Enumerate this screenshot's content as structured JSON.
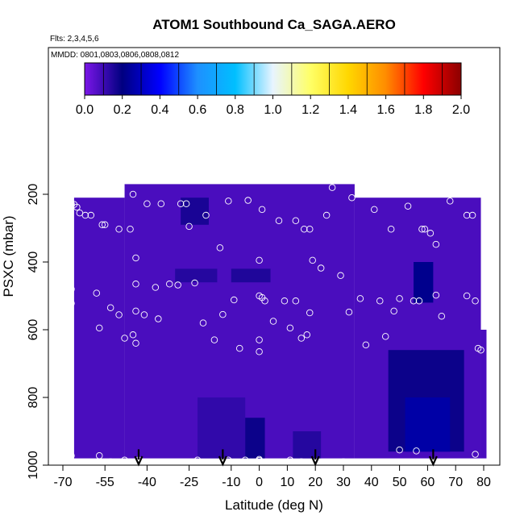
{
  "chart_data": {
    "type": "heatmap",
    "title": "ATOM1 Southbound Ca_SAGA.AERO",
    "notes": [
      "Flts: 2,3,4,5,6",
      "MMDD: 0801,0803,0806,0808,0812"
    ],
    "xlabel": "Latitude (deg N)",
    "ylabel": "PSXC (mbar)",
    "xlim": [
      -70,
      80
    ],
    "ylim": [
      1000,
      100
    ],
    "x_ticks": [
      -70,
      -55,
      -40,
      -25,
      -10,
      0,
      10,
      20,
      30,
      40,
      50,
      60,
      70,
      80
    ],
    "x_tick_labels": [
      "-70",
      "-55",
      "-40",
      "-25",
      "-10",
      "0",
      "10",
      "20",
      "30",
      "40",
      "50",
      "60",
      "70",
      "80"
    ],
    "y_ticks": [
      200,
      400,
      600,
      800,
      1000
    ],
    "y_tick_labels": [
      "200",
      "400",
      "600",
      "800",
      "1000"
    ],
    "colorbar": {
      "range": [
        0,
        2.0
      ],
      "ticks": [
        0.0,
        0.2,
        0.4,
        0.6,
        0.8,
        1.0,
        1.2,
        1.4,
        1.6,
        1.8,
        2.0
      ],
      "tick_labels": [
        "0.0",
        "0.2",
        "0.4",
        "0.6",
        "0.8",
        "1.0",
        "1.2",
        "1.4",
        "1.6",
        "1.8",
        "2.0"
      ],
      "colors": [
        "#7b16e8",
        "#000080",
        "#0000ff",
        "#1e90ff",
        "#00bfff",
        "#e8f4ff",
        "#ffff66",
        "#ffd700",
        "#ff8c00",
        "#ff0000",
        "#8b0000"
      ]
    },
    "field_default_value": 0.08,
    "field_regions": [
      {
        "x": [
          -66,
          -48
        ],
        "y": [
          210,
          980
        ],
        "value": 0.08
      },
      {
        "x": [
          -48,
          34
        ],
        "y": [
          170,
          980
        ],
        "value": 0.08
      },
      {
        "x": [
          34,
          79
        ],
        "y": [
          210,
          980
        ],
        "value": 0.08
      },
      {
        "x": [
          79,
          81
        ],
        "y": [
          600,
          980
        ],
        "value": 0.08
      },
      {
        "x": [
          -28,
          -18
        ],
        "y": [
          210,
          290
        ],
        "value": 0.16
      },
      {
        "x": [
          -10,
          4
        ],
        "y": [
          420,
          460
        ],
        "value": 0.15
      },
      {
        "x": [
          -30,
          -15
        ],
        "y": [
          420,
          460
        ],
        "value": 0.14
      },
      {
        "x": [
          -22,
          -5
        ],
        "y": [
          800,
          980
        ],
        "value": 0.12
      },
      {
        "x": [
          -5,
          2
        ],
        "y": [
          860,
          980
        ],
        "value": 0.18
      },
      {
        "x": [
          12,
          22
        ],
        "y": [
          900,
          980
        ],
        "value": 0.14
      },
      {
        "x": [
          55,
          62
        ],
        "y": [
          400,
          520
        ],
        "value": 0.22
      },
      {
        "x": [
          46,
          73
        ],
        "y": [
          660,
          960
        ],
        "value": 0.18
      },
      {
        "x": [
          52,
          68
        ],
        "y": [
          800,
          960
        ],
        "value": 0.26
      }
    ],
    "observation_points": [
      {
        "x": -67,
        "y": 228
      },
      {
        "x": -66,
        "y": 230
      },
      {
        "x": -65,
        "y": 238
      },
      {
        "x": -64,
        "y": 255
      },
      {
        "x": -62,
        "y": 262
      },
      {
        "x": -60,
        "y": 262
      },
      {
        "x": -56,
        "y": 290
      },
      {
        "x": -55,
        "y": 290
      },
      {
        "x": -50,
        "y": 303
      },
      {
        "x": -46,
        "y": 303
      },
      {
        "x": -45,
        "y": 200
      },
      {
        "x": -40,
        "y": 228
      },
      {
        "x": -35,
        "y": 228
      },
      {
        "x": -28,
        "y": 228
      },
      {
        "x": -26,
        "y": 228
      },
      {
        "x": -19,
        "y": 262
      },
      {
        "x": -11,
        "y": 220
      },
      {
        "x": -4,
        "y": 218
      },
      {
        "x": 1,
        "y": 245
      },
      {
        "x": 7,
        "y": 278
      },
      {
        "x": 13,
        "y": 278
      },
      {
        "x": 16,
        "y": 303
      },
      {
        "x": 18,
        "y": 303
      },
      {
        "x": 24,
        "y": 262
      },
      {
        "x": 26,
        "y": 180
      },
      {
        "x": 33,
        "y": 210
      },
      {
        "x": 41,
        "y": 245
      },
      {
        "x": 47,
        "y": 303
      },
      {
        "x": 53,
        "y": 235
      },
      {
        "x": 58,
        "y": 303
      },
      {
        "x": 59,
        "y": 303
      },
      {
        "x": 61,
        "y": 315
      },
      {
        "x": 63,
        "y": 348
      },
      {
        "x": 68,
        "y": 220
      },
      {
        "x": 74,
        "y": 262
      },
      {
        "x": 76,
        "y": 262
      },
      {
        "x": -44,
        "y": 388
      },
      {
        "x": -25,
        "y": 295
      },
      {
        "x": -14,
        "y": 358
      },
      {
        "x": 0,
        "y": 395
      },
      {
        "x": 19,
        "y": 395
      },
      {
        "x": 22,
        "y": 418
      },
      {
        "x": 29,
        "y": 440
      },
      {
        "x": -44,
        "y": 465
      },
      {
        "x": -37,
        "y": 475
      },
      {
        "x": -32,
        "y": 465
      },
      {
        "x": -29,
        "y": 468
      },
      {
        "x": -23,
        "y": 462
      },
      {
        "x": -67,
        "y": 480
      },
      {
        "x": -58,
        "y": 492
      },
      {
        "x": -67,
        "y": 522
      },
      {
        "x": -53,
        "y": 535
      },
      {
        "x": -50,
        "y": 556
      },
      {
        "x": -44,
        "y": 545
      },
      {
        "x": -41,
        "y": 556
      },
      {
        "x": -36,
        "y": 568
      },
      {
        "x": -45,
        "y": 615
      },
      {
        "x": -44,
        "y": 640
      },
      {
        "x": -48,
        "y": 625
      },
      {
        "x": -57,
        "y": 595
      },
      {
        "x": -20,
        "y": 580
      },
      {
        "x": -16,
        "y": 630
      },
      {
        "x": -13,
        "y": 555
      },
      {
        "x": -9,
        "y": 512
      },
      {
        "x": -7,
        "y": 655
      },
      {
        "x": 0,
        "y": 500
      },
      {
        "x": 1,
        "y": 505
      },
      {
        "x": 2,
        "y": 515
      },
      {
        "x": 0,
        "y": 630
      },
      {
        "x": 0,
        "y": 665
      },
      {
        "x": 5,
        "y": 575
      },
      {
        "x": 9,
        "y": 515
      },
      {
        "x": 11,
        "y": 595
      },
      {
        "x": 13,
        "y": 515
      },
      {
        "x": 15,
        "y": 625
      },
      {
        "x": 17,
        "y": 615
      },
      {
        "x": 18,
        "y": 550
      },
      {
        "x": 32,
        "y": 548
      },
      {
        "x": 36,
        "y": 508
      },
      {
        "x": 38,
        "y": 645
      },
      {
        "x": 43,
        "y": 515
      },
      {
        "x": 45,
        "y": 620
      },
      {
        "x": 48,
        "y": 545
      },
      {
        "x": 50,
        "y": 508
      },
      {
        "x": 55,
        "y": 515
      },
      {
        "x": 57,
        "y": 515
      },
      {
        "x": 63,
        "y": 498
      },
      {
        "x": 65,
        "y": 560
      },
      {
        "x": 74,
        "y": 500
      },
      {
        "x": 77,
        "y": 515
      },
      {
        "x": 78,
        "y": 655
      },
      {
        "x": 79,
        "y": 660
      },
      {
        "x": -67,
        "y": 972
      },
      {
        "x": -57,
        "y": 972
      },
      {
        "x": -53,
        "y": 990
      },
      {
        "x": -48,
        "y": 985
      },
      {
        "x": -43,
        "y": 985
      },
      {
        "x": -38,
        "y": 993
      },
      {
        "x": -32,
        "y": 993
      },
      {
        "x": -22,
        "y": 985
      },
      {
        "x": -11,
        "y": 985
      },
      {
        "x": -5,
        "y": 985
      },
      {
        "x": 0,
        "y": 983
      },
      {
        "x": 0,
        "y": 986
      },
      {
        "x": 11,
        "y": 985
      },
      {
        "x": 15,
        "y": 990
      },
      {
        "x": 18,
        "y": 992
      },
      {
        "x": 30,
        "y": 990
      },
      {
        "x": 43,
        "y": 1008
      },
      {
        "x": 50,
        "y": 955
      },
      {
        "x": 56,
        "y": 958
      },
      {
        "x": 77,
        "y": 968
      }
    ],
    "arrows": [
      {
        "x": -43,
        "y": 958
      },
      {
        "x": -13,
        "y": 958
      },
      {
        "x": 20,
        "y": 958
      },
      {
        "x": 62,
        "y": 958
      }
    ]
  }
}
